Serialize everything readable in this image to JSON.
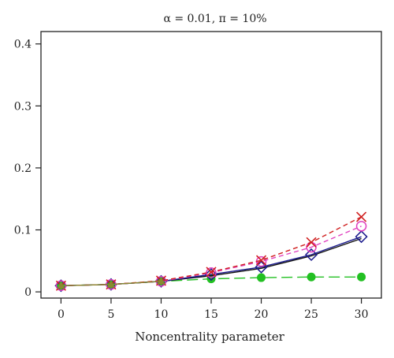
{
  "chart_data": {
    "type": "line",
    "title": "α = 0.01, π = 10%",
    "xlabel": "Noncentrality parameter",
    "ylabel": "",
    "x": [
      0,
      5,
      10,
      15,
      20,
      25,
      30
    ],
    "xticks": [
      "0",
      "5",
      "10",
      "15",
      "20",
      "25",
      "30"
    ],
    "yticks": [
      "0",
      "0.1",
      "0.2",
      "0.3",
      "0.4"
    ],
    "xlim": [
      -2,
      32
    ],
    "ylim": [
      -0.01,
      0.42
    ],
    "grid": false,
    "legend": "none",
    "series": [
      {
        "values": [
          0.01,
          0.012,
          0.017,
          0.021,
          0.023,
          0.024,
          0.024
        ],
        "color": "#22c022",
        "marker": "filled-circle",
        "dash": "long-dash"
      },
      {
        "values": [
          0.01,
          0.012,
          0.017,
          0.026,
          0.038,
          0.058,
          0.086
        ],
        "color": "#111111",
        "marker": "none",
        "dash": "solid"
      },
      {
        "values": [
          0.01,
          0.012,
          0.017,
          0.028,
          0.04,
          0.06,
          0.089
        ],
        "color": "#1a1a8c",
        "marker": "open-diamond",
        "dash": "solid"
      },
      {
        "values": [
          0.01,
          0.012,
          0.017,
          0.031,
          0.049,
          0.072,
          0.106
        ],
        "color": "#e040c0",
        "marker": "open-circle",
        "dash": "dash"
      },
      {
        "values": [
          0.01,
          0.012,
          0.018,
          0.032,
          0.051,
          0.08,
          0.121
        ],
        "color": "#d02020",
        "marker": "x-cross",
        "dash": "dash"
      },
      {
        "values": [
          0.01,
          0.012,
          0.017,
          null,
          null,
          null,
          null
        ],
        "color": "#8a8a30",
        "marker": "filled-triangle",
        "dash": "solid"
      }
    ]
  }
}
